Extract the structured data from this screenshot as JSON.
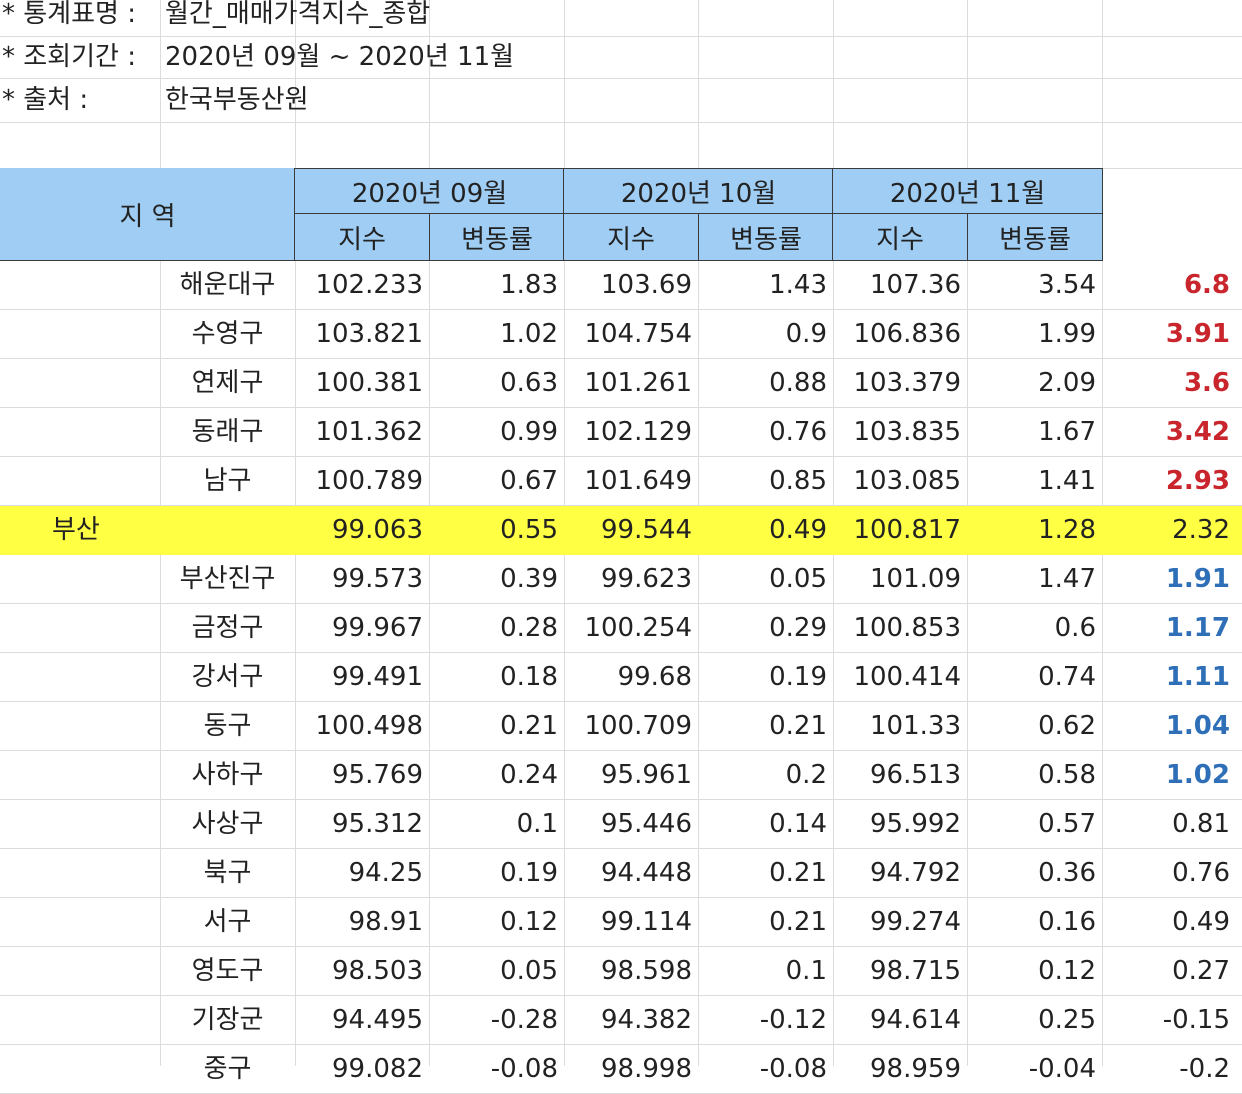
{
  "meta": [
    {
      "label": "* 통계표명 :",
      "value": "월간_매매가격지수_종합"
    },
    {
      "label": "* 조회기간 :",
      "value": "2020년 09월 ~ 2020년 11월"
    },
    {
      "label": "* 출처 :",
      "value": "한국부동산원"
    }
  ],
  "header": {
    "region_label": "지 역",
    "months": [
      "2020년 09월",
      "2020년 10월",
      "2020년 11월"
    ],
    "index_label": "지수",
    "change_label": "변동률"
  },
  "colors": {
    "header_bg": "#9fcdf3",
    "highlight_bg": "#ffff44",
    "red": "#c9252c",
    "blue": "#2e6fb7"
  },
  "rows": [
    {
      "region": "",
      "district": "해운대구",
      "v": [
        "102.233",
        "1.83",
        "103.69",
        "1.43",
        "107.36",
        "3.54"
      ],
      "total": "6.8",
      "style": "red"
    },
    {
      "region": "",
      "district": "수영구",
      "v": [
        "103.821",
        "1.02",
        "104.754",
        "0.9",
        "106.836",
        "1.99"
      ],
      "total": "3.91",
      "style": "red"
    },
    {
      "region": "",
      "district": "연제구",
      "v": [
        "100.381",
        "0.63",
        "101.261",
        "0.88",
        "103.379",
        "2.09"
      ],
      "total": "3.6",
      "style": "red"
    },
    {
      "region": "",
      "district": "동래구",
      "v": [
        "101.362",
        "0.99",
        "102.129",
        "0.76",
        "103.835",
        "1.67"
      ],
      "total": "3.42",
      "style": "red"
    },
    {
      "region": "",
      "district": "남구",
      "v": [
        "100.789",
        "0.67",
        "101.649",
        "0.85",
        "103.085",
        "1.41"
      ],
      "total": "2.93",
      "style": "red"
    },
    {
      "region": "부산",
      "district": "",
      "v": [
        "99.063",
        "0.55",
        "99.544",
        "0.49",
        "100.817",
        "1.28"
      ],
      "total": "2.32",
      "style": "highlight"
    },
    {
      "region": "",
      "district": "부산진구",
      "v": [
        "99.573",
        "0.39",
        "99.623",
        "0.05",
        "101.09",
        "1.47"
      ],
      "total": "1.91",
      "style": "blue"
    },
    {
      "region": "",
      "district": "금정구",
      "v": [
        "99.967",
        "0.28",
        "100.254",
        "0.29",
        "100.853",
        "0.6"
      ],
      "total": "1.17",
      "style": "blue"
    },
    {
      "region": "",
      "district": "강서구",
      "v": [
        "99.491",
        "0.18",
        "99.68",
        "0.19",
        "100.414",
        "0.74"
      ],
      "total": "1.11",
      "style": "blue"
    },
    {
      "region": "",
      "district": "동구",
      "v": [
        "100.498",
        "0.21",
        "100.709",
        "0.21",
        "101.33",
        "0.62"
      ],
      "total": "1.04",
      "style": "blue"
    },
    {
      "region": "",
      "district": "사하구",
      "v": [
        "95.769",
        "0.24",
        "95.961",
        "0.2",
        "96.513",
        "0.58"
      ],
      "total": "1.02",
      "style": "blue"
    },
    {
      "region": "",
      "district": "사상구",
      "v": [
        "95.312",
        "0.1",
        "95.446",
        "0.14",
        "95.992",
        "0.57"
      ],
      "total": "0.81",
      "style": ""
    },
    {
      "region": "",
      "district": "북구",
      "v": [
        "94.25",
        "0.19",
        "94.448",
        "0.21",
        "94.792",
        "0.36"
      ],
      "total": "0.76",
      "style": ""
    },
    {
      "region": "",
      "district": "서구",
      "v": [
        "98.91",
        "0.12",
        "99.114",
        "0.21",
        "99.274",
        "0.16"
      ],
      "total": "0.49",
      "style": ""
    },
    {
      "region": "",
      "district": "영도구",
      "v": [
        "98.503",
        "0.05",
        "98.598",
        "0.1",
        "98.715",
        "0.12"
      ],
      "total": "0.27",
      "style": ""
    },
    {
      "region": "",
      "district": "기장군",
      "v": [
        "94.495",
        "-0.28",
        "94.382",
        "-0.12",
        "94.614",
        "0.25"
      ],
      "total": "-0.15",
      "style": ""
    },
    {
      "region": "",
      "district": "중구",
      "v": [
        "99.082",
        "-0.08",
        "98.998",
        "-0.08",
        "98.959",
        "-0.04"
      ],
      "total": "-0.2",
      "style": ""
    }
  ]
}
